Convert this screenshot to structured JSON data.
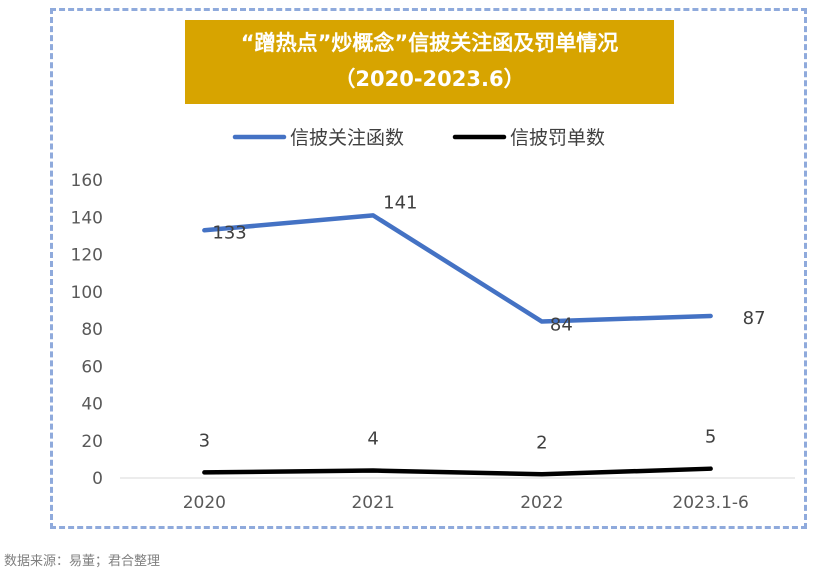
{
  "chart_data": {
    "type": "line",
    "title_line1": "“蹭热点”炒概念”信披关注函及罚单情况",
    "title_line2": "（2020-2023.6）",
    "categories": [
      "2020",
      "2021",
      "2022",
      "2023.1-6"
    ],
    "series": [
      {
        "name": "信披关注函数",
        "values": [
          133,
          141,
          84,
          87
        ],
        "color": "#4472C4"
      },
      {
        "name": "信披罚单数",
        "values": [
          3,
          4,
          2,
          5
        ],
        "color": "#000000"
      }
    ],
    "ylim": [
      0,
      160
    ],
    "yticks": [
      0,
      20,
      40,
      60,
      80,
      100,
      120,
      140,
      160
    ],
    "legend_position": "top",
    "grid": false
  },
  "source_note": "数据来源：易董；君合整理"
}
